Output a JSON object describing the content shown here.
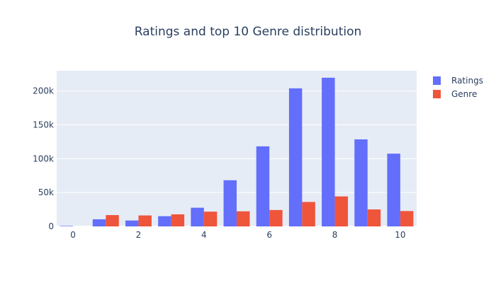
{
  "chart_data": {
    "type": "bar",
    "title": "Ratings and top 10 Genre distribution",
    "xlabel": "",
    "ylabel": "",
    "x": [
      0,
      1,
      2,
      3,
      4,
      5,
      6,
      7,
      8,
      9,
      10
    ],
    "x_ticks": [
      0,
      2,
      4,
      6,
      8,
      10
    ],
    "y_ticks": [
      0,
      50000,
      100000,
      150000,
      200000
    ],
    "y_tick_labels": [
      "0",
      "50k",
      "100k",
      "150k",
      "200k"
    ],
    "ylim": [
      0,
      230000
    ],
    "grid": true,
    "legend_position": "top-right",
    "series": [
      {
        "name": "Ratings",
        "color": "#636efa",
        "values": [
          700,
          10500,
          8700,
          15100,
          27600,
          68200,
          118300,
          204000,
          219700,
          128600,
          107500
        ]
      },
      {
        "name": "Genre",
        "color": "#ef553b",
        "values": [
          null,
          16700,
          16200,
          17800,
          21800,
          22300,
          24200,
          36100,
          44300,
          25100,
          22700
        ]
      }
    ]
  },
  "colors": {
    "plot_background": "#e5ecf6",
    "gridline": "#ffffff",
    "text": "#2a3f5f"
  }
}
